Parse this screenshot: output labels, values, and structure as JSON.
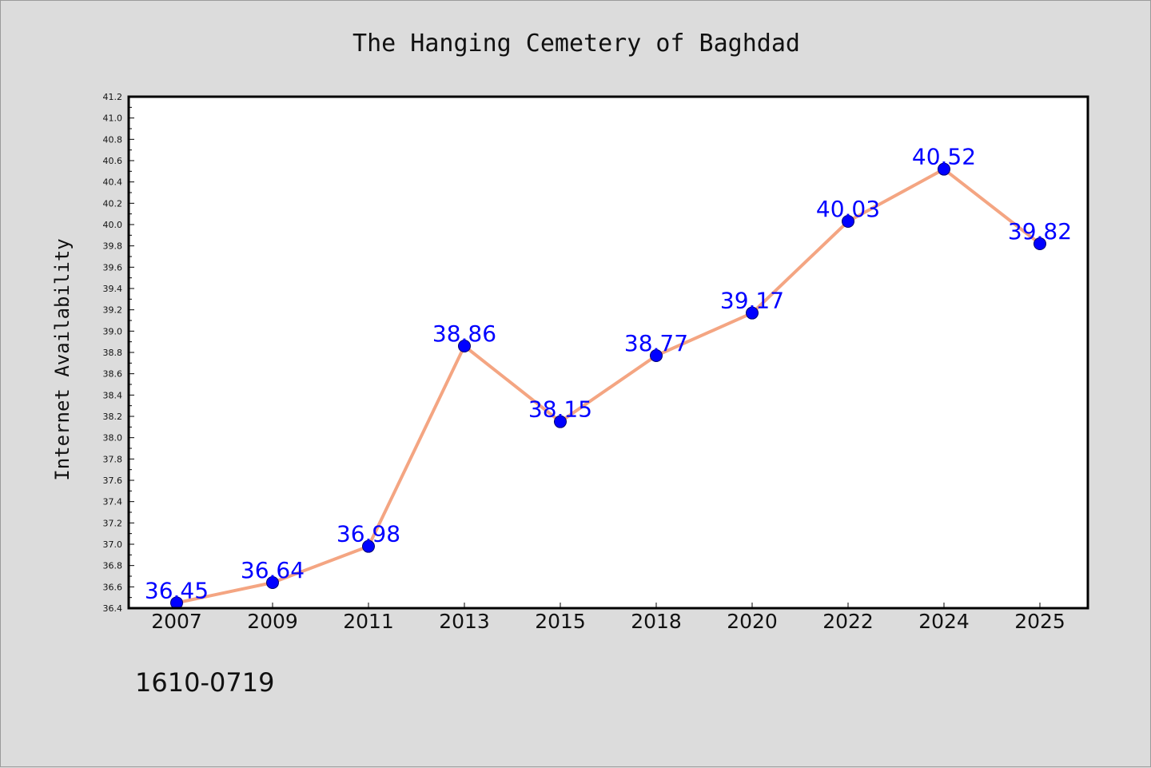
{
  "chart_data": {
    "type": "line",
    "title": "The Hanging Cemetery of Baghdad",
    "xlabel": "",
    "ylabel": "Internet Availability",
    "categories": [
      "2007",
      "2009",
      "2011",
      "2013",
      "2015",
      "2018",
      "2020",
      "2022",
      "2024",
      "2025"
    ],
    "series": [
      {
        "values": [
          36.45,
          36.64,
          36.98,
          38.86,
          38.15,
          38.77,
          39.17,
          40.03,
          40.52,
          39.82
        ],
        "line_color": "#f4a582",
        "marker_color": "#0000ff"
      }
    ],
    "data_labels": [
      "36.45",
      "36.64",
      "36.98",
      "38.86",
      "38.15",
      "38.77",
      "39.17",
      "40.03",
      "40.52",
      "39.82"
    ],
    "ylim": [
      36.4,
      41.2
    ],
    "yticks": [
      "36.4",
      "36.6",
      "36.8",
      "37.0",
      "37.2",
      "37.4",
      "37.6",
      "37.8",
      "38.0",
      "38.2",
      "38.4",
      "38.6",
      "38.8",
      "39.0",
      "39.2",
      "39.4",
      "39.6",
      "39.8",
      "40.0",
      "40.2",
      "40.4",
      "40.6",
      "40.8",
      "41.0",
      "41.2"
    ],
    "grid": false,
    "legend": "none",
    "label_color": "#0000ff",
    "background": "#dcdcdc",
    "plot_background": "#ffffff"
  },
  "footnote": "1610-0719"
}
